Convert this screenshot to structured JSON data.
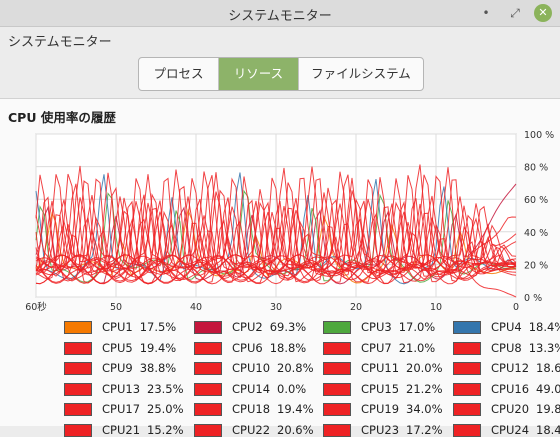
{
  "window": {
    "title": "システムモニター",
    "minimize_label": "•",
    "maximize_label": "⤢",
    "close_label": "✕"
  },
  "app_label": "システムモニター",
  "tabs": [
    {
      "label": "プロセス",
      "active": false
    },
    {
      "label": "リソース",
      "active": true
    },
    {
      "label": "ファイルシステム",
      "active": false
    }
  ],
  "section_title": "CPU 使用率の履歴",
  "colors": {
    "accent": "#8db369",
    "close_button": "#8bb35b",
    "grid": "#dcdcdc"
  },
  "chart_data": {
    "type": "line",
    "title": "CPU 使用率の履歴",
    "x_ticks": [
      "60秒",
      "50",
      "40",
      "30",
      "20",
      "10",
      "0"
    ],
    "y_ticks": [
      "100 %",
      "80 %",
      "60 %",
      "40 %",
      "20 %",
      "0 %"
    ],
    "x_range": [
      60,
      0
    ],
    "y_range": [
      0,
      100
    ],
    "grid": true,
    "legend_position": "bottom",
    "series": [
      {
        "name": "CPU1",
        "value": "17.5%",
        "color": "#f57900"
      },
      {
        "name": "CPU2",
        "value": "69.3%",
        "color": "#c4163c"
      },
      {
        "name": "CPU3",
        "value": "17.0%",
        "color": "#4ea83d"
      },
      {
        "name": "CPU4",
        "value": "18.4%",
        "color": "#3476ad"
      },
      {
        "name": "CPU5",
        "value": "19.4%",
        "color": "#ee2224"
      },
      {
        "name": "CPU6",
        "value": "18.8%",
        "color": "#ee2224"
      },
      {
        "name": "CPU7",
        "value": "21.0%",
        "color": "#ee2224"
      },
      {
        "name": "CPU8",
        "value": "13.3%",
        "color": "#ee2224"
      },
      {
        "name": "CPU9",
        "value": "38.8%",
        "color": "#ee2224"
      },
      {
        "name": "CPU10",
        "value": "20.8%",
        "color": "#ee2224"
      },
      {
        "name": "CPU11",
        "value": "20.0%",
        "color": "#ee2224"
      },
      {
        "name": "CPU12",
        "value": "18.6",
        "color": "#ee2224"
      },
      {
        "name": "CPU13",
        "value": "23.5%",
        "color": "#ee2224"
      },
      {
        "name": "CPU14",
        "value": "0.0%",
        "color": "#ee2224"
      },
      {
        "name": "CPU15",
        "value": "21.2%",
        "color": "#ee2224"
      },
      {
        "name": "CPU16",
        "value": "49.0",
        "color": "#ee2224"
      },
      {
        "name": "CPU17",
        "value": "25.0%",
        "color": "#ee2224"
      },
      {
        "name": "CPU18",
        "value": "19.4%",
        "color": "#ee2224"
      },
      {
        "name": "CPU19",
        "value": "34.0%",
        "color": "#ee2224"
      },
      {
        "name": "CPU20",
        "value": "19.8",
        "color": "#ee2224"
      },
      {
        "name": "CPU21",
        "value": "15.2%",
        "color": "#ee2224"
      },
      {
        "name": "CPU22",
        "value": "20.6%",
        "color": "#ee2224"
      },
      {
        "name": "CPU23",
        "value": "17.2%",
        "color": "#ee2224"
      },
      {
        "name": "CPU24",
        "value": "18.4",
        "color": "#ee2224"
      }
    ]
  }
}
